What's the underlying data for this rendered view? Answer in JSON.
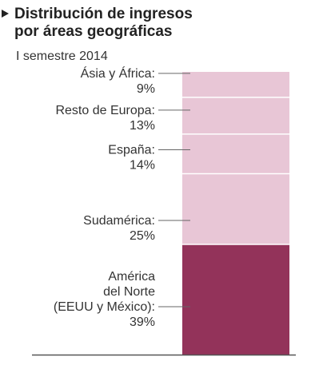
{
  "header": {
    "title_line1": "Distribución de ingresos",
    "title_line2": "por áreas geográficas",
    "subtitle": "I semestre 2014",
    "bullet_icon": "triangle-right-icon"
  },
  "colors": {
    "highlight": "#93335a",
    "muted": "#e8c6d6",
    "divider": "#ffffff",
    "leader": "#666666",
    "baseline": "#555555"
  },
  "chart_data": {
    "type": "bar",
    "stacked": true,
    "title": "Distribución de ingresos por áreas geográficas",
    "subtitle": "I semestre 2014",
    "unit": "%",
    "segments": [
      {
        "name_lines": [
          "América",
          "del Norte",
          "(EEUU y México):"
        ],
        "value": 39,
        "label": "39%",
        "highlight": true
      },
      {
        "name_lines": [
          "Sudamérica:"
        ],
        "value": 25,
        "label": "25%",
        "highlight": false
      },
      {
        "name_lines": [
          "España:"
        ],
        "value": 14,
        "label": "14%",
        "highlight": false
      },
      {
        "name_lines": [
          "Resto de Europa:"
        ],
        "value": 13,
        "label": "13%",
        "highlight": false
      },
      {
        "name_lines": [
          "Ásia y África:"
        ],
        "value": 9,
        "label": "9%",
        "highlight": false
      }
    ]
  }
}
